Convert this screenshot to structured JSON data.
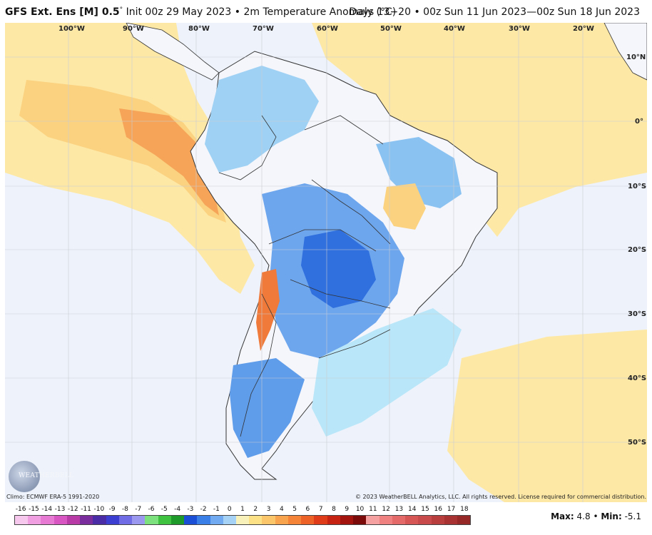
{
  "header": {
    "model": "GFS Ext.  Ens [M] 0.5",
    "init": "Init 00z 29 May 2023",
    "sep": "•",
    "variable": "2m Temperature Anomaly (°C)",
    "period": "Days 13−20 • 00z Sun 11 Jun 2023—00z Sun 18 Jun 2023"
  },
  "axes": {
    "longitudes": [
      "100°W",
      "90°W",
      "80°W",
      "70°W",
      "60°W",
      "50°W",
      "40°W",
      "30°W",
      "20°W"
    ],
    "latitudes": [
      "10°N",
      "0°",
      "10°S",
      "20°S",
      "30°S",
      "40°S",
      "50°S"
    ]
  },
  "credits": {
    "climo": "Climo: ECMWF ERA-5 1991-2020",
    "copyright": "© 2023 WeatherBELL Analytics, LLC. All rights reserved. License required for commercial distribution.",
    "logo": "WEATHERBELL"
  },
  "scale": {
    "labels": [
      "-16",
      "-15",
      "-14",
      "-13",
      "-12",
      "-11",
      "-10",
      "-9",
      "-8",
      "-7",
      "-6",
      "-5",
      "-4",
      "-3",
      "-2",
      "-1",
      "0",
      "1",
      "2",
      "3",
      "4",
      "5",
      "6",
      "7",
      "8",
      "9",
      "10",
      "11",
      "12",
      "13",
      "14",
      "15",
      "16",
      "17",
      "18"
    ],
    "colors": [
      "#f7c8ee",
      "#f09fe0",
      "#e77ad2",
      "#d756c2",
      "#b83aa6",
      "#7a2e9e",
      "#4a2ca6",
      "#3b3ed0",
      "#6f6ce6",
      "#9a98ef",
      "#7de27d",
      "#3fc23f",
      "#1e9a2a",
      "#1a4fd6",
      "#3a7ee8",
      "#71aaf0",
      "#a6d2f6",
      "#f8f1ba",
      "#fde187",
      "#fbc56a",
      "#f8a44f",
      "#f58338",
      "#ed6226",
      "#df3d1a",
      "#c72313",
      "#a3140f",
      "#7b0a0a",
      "#f5a1a1",
      "#ef8181",
      "#e46969",
      "#d65656",
      "#c84a4a",
      "#b83d3d",
      "#a83131",
      "#962828"
    ],
    "max_label": "Max:",
    "max_value": "4.8",
    "min_label": "Min:",
    "min_value": "-5.1",
    "stat_sep": "•"
  }
}
